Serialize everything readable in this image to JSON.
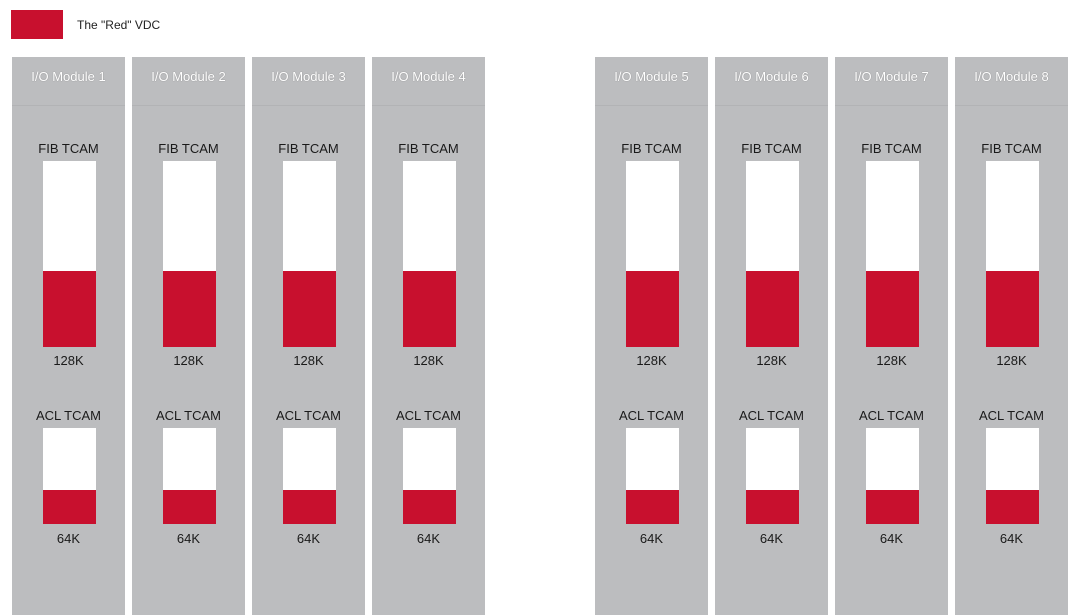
{
  "legend": {
    "label": "The \"Red\" VDC",
    "color": "#c8102e"
  },
  "colors": {
    "module_bg": "#bcbdbf",
    "tcam_empty": "#ffffff",
    "tcam_used": "#c8102e"
  },
  "modules": [
    {
      "title": "I/O Module 1",
      "fib": {
        "label": "FIB TCAM",
        "value": "128K",
        "fill": 0.41
      },
      "acl": {
        "label": "ACL TCAM",
        "value": "64K",
        "fill": 0.35
      }
    },
    {
      "title": "I/O Module 2",
      "fib": {
        "label": "FIB TCAM",
        "value": "128K",
        "fill": 0.41
      },
      "acl": {
        "label": "ACL TCAM",
        "value": "64K",
        "fill": 0.35
      }
    },
    {
      "title": "I/O Module 3",
      "fib": {
        "label": "FIB TCAM",
        "value": "128K",
        "fill": 0.41
      },
      "acl": {
        "label": "ACL TCAM",
        "value": "64K",
        "fill": 0.35
      }
    },
    {
      "title": "I/O Module 4",
      "fib": {
        "label": "FIB TCAM",
        "value": "128K",
        "fill": 0.41
      },
      "acl": {
        "label": "ACL TCAM",
        "value": "64K",
        "fill": 0.35
      }
    },
    {
      "title": "I/O Module 5",
      "fib": {
        "label": "FIB TCAM",
        "value": "128K",
        "fill": 0.41
      },
      "acl": {
        "label": "ACL TCAM",
        "value": "64K",
        "fill": 0.35
      }
    },
    {
      "title": "I/O Module 6",
      "fib": {
        "label": "FIB TCAM",
        "value": "128K",
        "fill": 0.41
      },
      "acl": {
        "label": "ACL TCAM",
        "value": "64K",
        "fill": 0.35
      }
    },
    {
      "title": "I/O Module 7",
      "fib": {
        "label": "FIB TCAM",
        "value": "128K",
        "fill": 0.41
      },
      "acl": {
        "label": "ACL TCAM",
        "value": "64K",
        "fill": 0.35
      }
    },
    {
      "title": "I/O Module 8",
      "fib": {
        "label": "FIB TCAM",
        "value": "128K",
        "fill": 0.41
      },
      "acl": {
        "label": "ACL TCAM",
        "value": "64K",
        "fill": 0.35
      }
    }
  ]
}
